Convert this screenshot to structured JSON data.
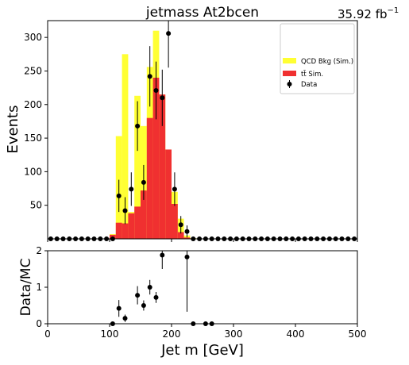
{
  "figure": {
    "title": "jetmass  At2bcen",
    "lumi": "35.92 fb",
    "lumi_exp": "−1"
  },
  "legend": [
    {
      "label": "QCD Bkg (Sim.)",
      "kind": "qcd"
    },
    {
      "label": "tt̄ Sim.",
      "kind": "ttbar"
    },
    {
      "label": "Data",
      "kind": "data"
    }
  ],
  "colors": {
    "qcd": "#ffff33",
    "ttbar": "#f03030",
    "data": "#000000"
  },
  "chart_data": [
    {
      "type": "bar",
      "panel": "main",
      "xlabel": "Jet m [GeV]",
      "ylabel": "Events",
      "xlim": [
        0,
        500
      ],
      "ylim": [
        0,
        325
      ],
      "yticks": [
        50,
        100,
        150,
        200,
        250,
        300
      ],
      "xticks": [
        0,
        100,
        200,
        300,
        400,
        500
      ],
      "bin_width": 10,
      "bin_edges_start": 0,
      "series": [
        {
          "name": "QCD Bkg (Sim.)",
          "kind": "qcd",
          "values": [
            0,
            0,
            0,
            0,
            0,
            0,
            0,
            0,
            0,
            0,
            7,
            153,
            275,
            40,
            213,
            168,
            256,
            310,
            215,
            133,
            70,
            30,
            5,
            1,
            0,
            0,
            0,
            0,
            0,
            0,
            0,
            0,
            0,
            0,
            0,
            0,
            0,
            0,
            0,
            0,
            0,
            0,
            0,
            0,
            0,
            0,
            0,
            0,
            0,
            0
          ]
        },
        {
          "name": "tt̄ Sim.",
          "kind": "ttbar",
          "values": [
            0,
            0,
            0,
            0,
            0,
            0,
            0,
            0,
            0,
            0,
            6,
            24,
            23,
            38,
            48,
            72,
            180,
            240,
            215,
            133,
            52,
            10,
            2,
            0,
            0,
            0,
            0,
            0,
            0,
            0,
            0,
            0,
            0,
            0,
            0,
            0,
            0,
            0,
            0,
            0,
            0,
            0,
            0,
            0,
            0,
            0,
            0,
            0,
            0,
            0
          ]
        }
      ],
      "data_points": {
        "name": "Data",
        "x": [
          5,
          15,
          25,
          35,
          45,
          55,
          65,
          75,
          85,
          95,
          105,
          115,
          125,
          135,
          145,
          155,
          165,
          175,
          185,
          195,
          205,
          215,
          225,
          235,
          245,
          255,
          265,
          275,
          285,
          295,
          305,
          315,
          325,
          335,
          345,
          355,
          365,
          375,
          385,
          395,
          405,
          415,
          425,
          435,
          445,
          455,
          465,
          475,
          485,
          495
        ],
        "y": [
          0,
          0,
          0,
          0,
          0,
          0,
          0,
          0,
          0,
          0,
          0,
          64,
          42,
          74,
          168,
          84,
          242,
          221,
          210,
          306,
          74,
          21,
          11,
          0,
          0,
          0,
          0,
          0,
          0,
          0,
          0,
          0,
          0,
          0,
          0,
          0,
          0,
          0,
          0,
          0,
          0,
          0,
          0,
          0,
          0,
          0,
          0,
          0,
          0,
          0
        ],
        "yerr": [
          0,
          0,
          0,
          0,
          0,
          0,
          0,
          0,
          0,
          0,
          0,
          24,
          20,
          25,
          37,
          26,
          45,
          43,
          42,
          51,
          25,
          13,
          9,
          0,
          0,
          0,
          0,
          0,
          0,
          0,
          0,
          0,
          0,
          0,
          0,
          0,
          0,
          0,
          0,
          0,
          0,
          0,
          0,
          0,
          0,
          0,
          0,
          0,
          0,
          0
        ]
      }
    },
    {
      "type": "scatter",
      "panel": "ratio",
      "xlabel": "Jet m [GeV]",
      "ylabel": "Data/MC",
      "xlim": [
        0,
        500
      ],
      "ylim": [
        0,
        2
      ],
      "yticks": [
        0,
        1,
        2
      ],
      "xticks": [
        0,
        100,
        200,
        300,
        400,
        500
      ],
      "x": [
        105,
        115,
        125,
        145,
        155,
        165,
        175,
        185,
        225,
        235,
        255,
        265
      ],
      "y": [
        0,
        0.42,
        0.15,
        0.78,
        0.5,
        1.0,
        0.72,
        1.88,
        1.83,
        0,
        0,
        0
      ],
      "yerr": [
        0,
        0.23,
        0.1,
        0.25,
        0.14,
        0.2,
        0.15,
        0.38,
        1.5,
        0,
        0,
        0
      ]
    }
  ]
}
